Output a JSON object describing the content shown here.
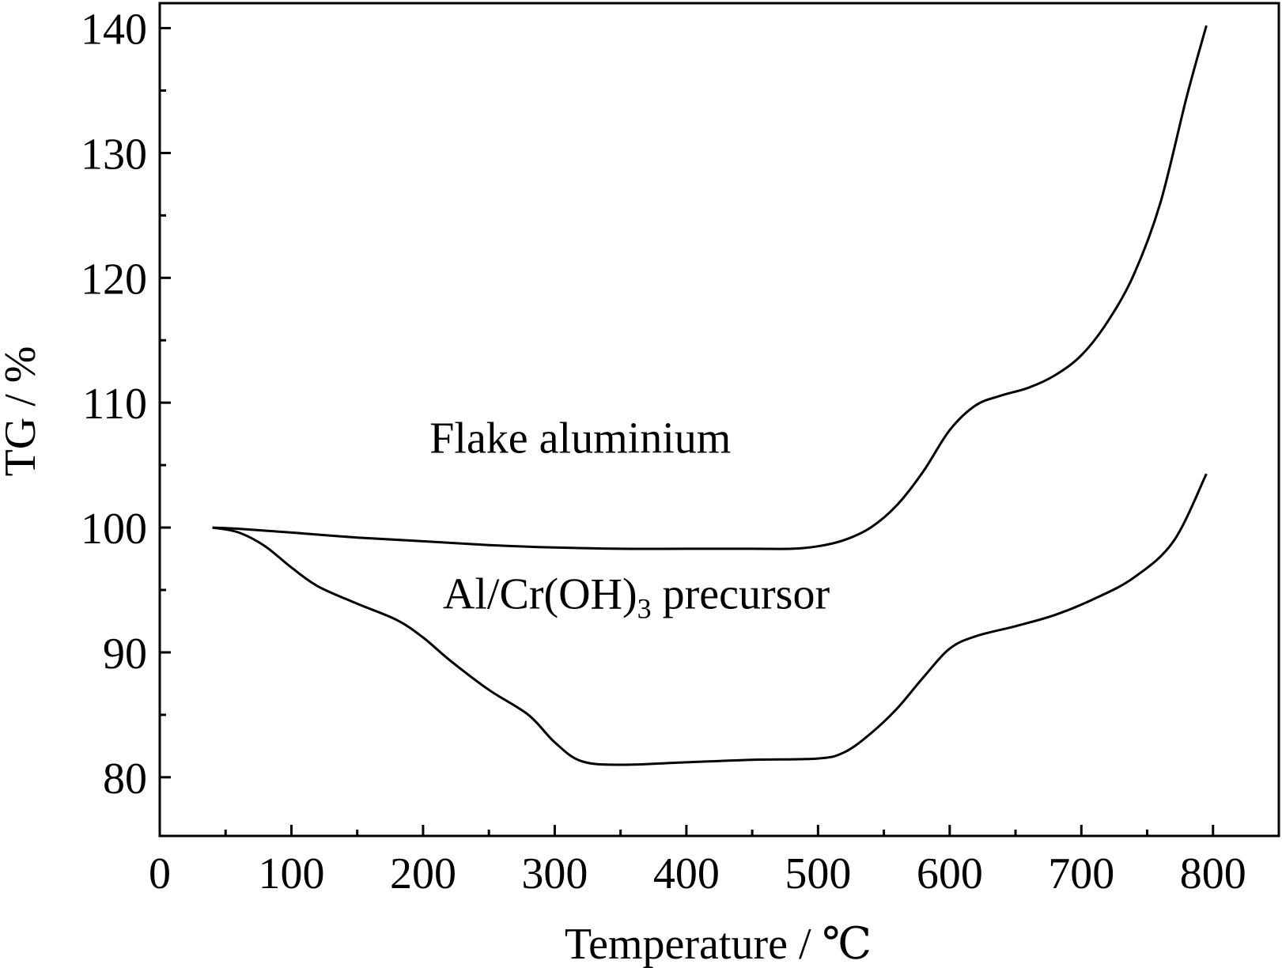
{
  "chart_data": {
    "type": "line",
    "title": "",
    "xlabel": "Temperature / ℃",
    "ylabel": "TG / %",
    "xlim": [
      0,
      850
    ],
    "ylim": [
      75.3,
      142
    ],
    "x_ticks": [
      0,
      100,
      200,
      300,
      400,
      500,
      600,
      700,
      800
    ],
    "y_ticks": [
      80,
      90,
      100,
      110,
      120,
      130,
      140
    ],
    "grid": false,
    "legend": "none",
    "series": [
      {
        "name": "Flake aluminium",
        "label": {
          "text": "Flake aluminium",
          "anchor_x": 205,
          "anchor_y": 106
        },
        "points": [
          [
            40,
            100.0
          ],
          [
            60,
            99.9
          ],
          [
            100,
            99.6
          ],
          [
            150,
            99.2
          ],
          [
            200,
            98.9
          ],
          [
            250,
            98.6
          ],
          [
            300,
            98.4
          ],
          [
            350,
            98.3
          ],
          [
            400,
            98.3
          ],
          [
            450,
            98.3
          ],
          [
            480,
            98.3
          ],
          [
            500,
            98.5
          ],
          [
            520,
            99.0
          ],
          [
            540,
            100.0
          ],
          [
            560,
            101.8
          ],
          [
            580,
            104.5
          ],
          [
            600,
            107.8
          ],
          [
            620,
            109.8
          ],
          [
            640,
            110.6
          ],
          [
            660,
            111.2
          ],
          [
            680,
            112.2
          ],
          [
            700,
            113.8
          ],
          [
            720,
            116.5
          ],
          [
            740,
            120.3
          ],
          [
            760,
            126.0
          ],
          [
            780,
            134.5
          ],
          [
            795,
            140.2
          ]
        ]
      },
      {
        "name": "Al/Cr(OH)3 precursor",
        "label": {
          "text": "Al/Cr(OH)",
          "subscript": "3",
          "suffix": " precursor",
          "anchor_x": 215,
          "anchor_y": 93.5
        },
        "points": [
          [
            40,
            100.0
          ],
          [
            60,
            99.6
          ],
          [
            80,
            98.5
          ],
          [
            100,
            96.8
          ],
          [
            120,
            95.3
          ],
          [
            150,
            93.9
          ],
          [
            180,
            92.6
          ],
          [
            200,
            91.2
          ],
          [
            220,
            89.4
          ],
          [
            250,
            87.0
          ],
          [
            280,
            85.0
          ],
          [
            300,
            82.8
          ],
          [
            320,
            81.3
          ],
          [
            350,
            81.0
          ],
          [
            400,
            81.2
          ],
          [
            450,
            81.4
          ],
          [
            500,
            81.5
          ],
          [
            520,
            82.0
          ],
          [
            540,
            83.5
          ],
          [
            560,
            85.5
          ],
          [
            580,
            88.0
          ],
          [
            600,
            90.3
          ],
          [
            620,
            91.3
          ],
          [
            650,
            92.1
          ],
          [
            680,
            93.0
          ],
          [
            710,
            94.3
          ],
          [
            740,
            96.0
          ],
          [
            770,
            98.9
          ],
          [
            795,
            104.3
          ]
        ]
      }
    ]
  }
}
